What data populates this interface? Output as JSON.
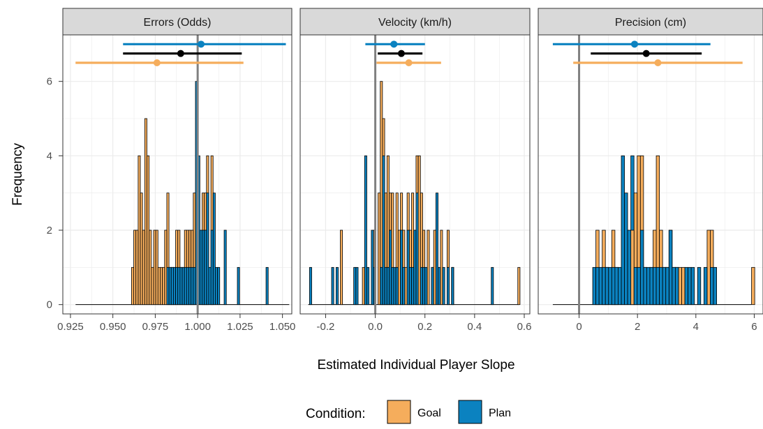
{
  "chart_data": {
    "type": "bar",
    "ylabel": "Frequency",
    "xlabel": "Estimated Individual Player Slope",
    "legend": {
      "title": "Condition:",
      "placement": "bottom",
      "items": [
        {
          "name": "Goal",
          "color": "#f5ad5c"
        },
        {
          "name": "Plan",
          "color": "#0b82c0"
        }
      ]
    },
    "colors": {
      "goal": "#f5ad5c",
      "plan": "#0b82c0",
      "overall": "#000000",
      "ref_line": "#808080",
      "grid": "#ebebeb"
    },
    "ylim": [
      -0.25,
      7.25
    ],
    "yticks": [
      0,
      2,
      4,
      6
    ],
    "grid": true,
    "facets": [
      {
        "title": "Errors (Odds)",
        "xlim": [
          0.9205,
          1.0555
        ],
        "xticks": [
          0.925,
          0.95,
          0.975,
          1.0,
          1.025,
          1.05
        ],
        "xtick_labels": [
          "0.925",
          "0.950",
          "0.975",
          "1.000",
          "1.025",
          "1.050"
        ],
        "ref_line": 1.0,
        "baseline": [
          0.928,
          1.054
        ],
        "bin_width": 0.0013,
        "bins_goal": [
          [
            0.961,
            1
          ],
          [
            0.9623,
            2
          ],
          [
            0.9636,
            2
          ],
          [
            0.9649,
            4
          ],
          [
            0.9662,
            3
          ],
          [
            0.9675,
            2
          ],
          [
            0.9688,
            5
          ],
          [
            0.9701,
            4
          ],
          [
            0.9714,
            2
          ],
          [
            0.9727,
            1
          ],
          [
            0.974,
            2
          ],
          [
            0.9753,
            2
          ],
          [
            0.9766,
            1
          ],
          [
            0.9779,
            1
          ],
          [
            0.9792,
            1
          ],
          [
            0.9805,
            2
          ],
          [
            0.9818,
            3
          ],
          [
            0.9831,
            1
          ],
          [
            0.9844,
            1
          ],
          [
            0.9857,
            1
          ],
          [
            0.987,
            2
          ],
          [
            0.9883,
            2
          ],
          [
            0.9896,
            1
          ],
          [
            0.9909,
            1
          ],
          [
            0.9922,
            2
          ],
          [
            0.9935,
            2
          ],
          [
            0.9948,
            2
          ],
          [
            0.9961,
            2
          ],
          [
            0.9974,
            3
          ],
          [
            1.0026,
            3
          ],
          [
            1.0039,
            3
          ],
          [
            1.0052,
            4
          ],
          [
            1.0078,
            4
          ]
        ],
        "bins_plan": [
          [
            0.9818,
            1
          ],
          [
            0.9831,
            1
          ],
          [
            0.9844,
            1
          ],
          [
            0.9857,
            1
          ],
          [
            0.987,
            1
          ],
          [
            0.9883,
            1
          ],
          [
            0.9896,
            1
          ],
          [
            0.9909,
            1
          ],
          [
            0.9922,
            1
          ],
          [
            0.9935,
            1
          ],
          [
            0.9948,
            1
          ],
          [
            0.9961,
            1
          ],
          [
            0.9974,
            1
          ],
          [
            0.9987,
            6
          ],
          [
            1.0,
            4
          ],
          [
            1.0013,
            2
          ],
          [
            1.0026,
            2
          ],
          [
            1.0039,
            2
          ],
          [
            1.0052,
            3
          ],
          [
            1.0065,
            1
          ],
          [
            1.0078,
            2
          ],
          [
            1.0091,
            3
          ],
          [
            1.0104,
            1
          ],
          [
            1.0117,
            1
          ],
          [
            1.0156,
            2
          ],
          [
            1.0234,
            1
          ],
          [
            1.0403,
            1
          ]
        ],
        "intervals": [
          {
            "group": "Plan",
            "y": 7.0,
            "low": 0.956,
            "high": 1.052,
            "point": 1.002
          },
          {
            "group": "Overall",
            "y": 6.75,
            "low": 0.956,
            "high": 1.026,
            "point": 0.99
          },
          {
            "group": "Goal",
            "y": 6.5,
            "low": 0.928,
            "high": 1.027,
            "point": 0.976
          }
        ]
      },
      {
        "title": "Velocity (km/h)",
        "xlim": [
          -0.3025,
          0.6225
        ],
        "xticks": [
          -0.2,
          0.0,
          0.2,
          0.4,
          0.6
        ],
        "xtick_labels": [
          "-0.2",
          "0.0",
          "0.2",
          "0.4",
          "0.6"
        ],
        "ref_line": 0.0,
        "baseline": [
          -0.27,
          0.58
        ],
        "bin_width": 0.0089,
        "bins_goal": [
          [
            -0.141,
            2
          ],
          [
            -0.052,
            1
          ],
          [
            -0.007,
            2
          ],
          [
            0.011,
            3
          ],
          [
            0.02,
            6
          ],
          [
            0.029,
            5
          ],
          [
            0.038,
            3
          ],
          [
            0.047,
            4
          ],
          [
            0.056,
            3
          ],
          [
            0.065,
            3
          ],
          [
            0.083,
            3
          ],
          [
            0.092,
            2
          ],
          [
            0.101,
            3
          ],
          [
            0.11,
            2
          ],
          [
            0.119,
            1
          ],
          [
            0.128,
            3
          ],
          [
            0.137,
            2
          ],
          [
            0.146,
            3
          ],
          [
            0.164,
            4
          ],
          [
            0.173,
            4
          ],
          [
            0.182,
            3
          ],
          [
            0.191,
            2
          ],
          [
            0.209,
            2
          ],
          [
            0.226,
            1
          ],
          [
            0.235,
            2
          ],
          [
            0.262,
            2
          ],
          [
            0.289,
            2
          ],
          [
            0.307,
            1
          ],
          [
            0.574,
            1
          ]
        ],
        "bins_plan": [
          [
            -0.265,
            1
          ],
          [
            -0.176,
            1
          ],
          [
            -0.158,
            1
          ],
          [
            -0.087,
            1
          ],
          [
            -0.078,
            1
          ],
          [
            -0.043,
            4
          ],
          [
            -0.034,
            1
          ],
          [
            -0.016,
            2
          ],
          [
            -0.007,
            1
          ],
          [
            0.02,
            1
          ],
          [
            0.029,
            4
          ],
          [
            0.038,
            1
          ],
          [
            0.047,
            1
          ],
          [
            0.056,
            2
          ],
          [
            0.065,
            1
          ],
          [
            0.074,
            1
          ],
          [
            0.083,
            1
          ],
          [
            0.101,
            2
          ],
          [
            0.11,
            1
          ],
          [
            0.128,
            2
          ],
          [
            0.137,
            1
          ],
          [
            0.146,
            1
          ],
          [
            0.155,
            2
          ],
          [
            0.164,
            3
          ],
          [
            0.182,
            1
          ],
          [
            0.191,
            1
          ],
          [
            0.2,
            1
          ],
          [
            0.226,
            1
          ],
          [
            0.244,
            3
          ],
          [
            0.253,
            1
          ],
          [
            0.271,
            1
          ],
          [
            0.289,
            1
          ],
          [
            0.307,
            1
          ],
          [
            0.467,
            1
          ]
        ],
        "intervals": [
          {
            "group": "Plan",
            "y": 7.0,
            "low": -0.04,
            "high": 0.2,
            "point": 0.075
          },
          {
            "group": "Overall",
            "y": 6.75,
            "low": 0.01,
            "high": 0.19,
            "point": 0.105
          },
          {
            "group": "Goal",
            "y": 6.5,
            "low": 0.005,
            "high": 0.265,
            "point": 0.135
          }
        ]
      },
      {
        "title": "Precision (cm)",
        "xlim": [
          -1.4,
          6.3
        ],
        "xticks": [
          0,
          2,
          4,
          6
        ],
        "xtick_labels": [
          "0",
          "2",
          "4",
          "6"
        ],
        "ref_line": 0.0,
        "baseline": [
          -0.9,
          5.9
        ],
        "bin_width": 0.109,
        "bins_goal": [
          [
            0.575,
            2
          ],
          [
            0.792,
            2
          ],
          [
            0.901,
            1
          ],
          [
            1.119,
            2
          ],
          [
            1.228,
            1
          ],
          [
            1.772,
            2
          ],
          [
            1.881,
            3
          ],
          [
            1.99,
            4
          ],
          [
            2.099,
            4
          ],
          [
            2.208,
            1
          ],
          [
            2.425,
            1
          ],
          [
            2.534,
            2
          ],
          [
            2.643,
            4
          ],
          [
            2.752,
            2
          ],
          [
            2.861,
            1
          ],
          [
            2.97,
            1
          ],
          [
            3.079,
            2
          ],
          [
            3.188,
            1
          ],
          [
            3.297,
            1
          ],
          [
            3.406,
            1
          ],
          [
            3.515,
            1
          ],
          [
            4.385,
            2
          ],
          [
            4.494,
            2
          ],
          [
            5.908,
            1
          ]
        ],
        "bins_plan": [
          [
            0.466,
            1
          ],
          [
            0.575,
            1
          ],
          [
            0.684,
            1
          ],
          [
            0.792,
            1
          ],
          [
            0.901,
            1
          ],
          [
            1.01,
            1
          ],
          [
            1.119,
            1
          ],
          [
            1.228,
            1
          ],
          [
            1.337,
            1
          ],
          [
            1.446,
            4
          ],
          [
            1.554,
            3
          ],
          [
            1.663,
            2
          ],
          [
            1.772,
            4
          ],
          [
            1.881,
            1
          ],
          [
            1.99,
            1
          ],
          [
            2.099,
            2
          ],
          [
            2.208,
            1
          ],
          [
            2.317,
            1
          ],
          [
            2.425,
            1
          ],
          [
            2.534,
            1
          ],
          [
            2.643,
            1
          ],
          [
            2.752,
            1
          ],
          [
            2.861,
            1
          ],
          [
            2.97,
            1
          ],
          [
            3.079,
            2
          ],
          [
            3.188,
            1
          ],
          [
            3.297,
            1
          ],
          [
            3.623,
            1
          ],
          [
            3.732,
            1
          ],
          [
            3.841,
            1
          ],
          [
            4.058,
            1
          ],
          [
            4.276,
            1
          ],
          [
            4.494,
            1
          ],
          [
            4.603,
            1
          ]
        ],
        "intervals": [
          {
            "group": "Plan",
            "y": 7.0,
            "low": -0.9,
            "high": 4.5,
            "point": 1.9
          },
          {
            "group": "Overall",
            "y": 6.75,
            "low": 0.4,
            "high": 4.2,
            "point": 2.3
          },
          {
            "group": "Goal",
            "y": 6.5,
            "low": -0.2,
            "high": 5.6,
            "point": 2.7
          }
        ]
      }
    ]
  }
}
